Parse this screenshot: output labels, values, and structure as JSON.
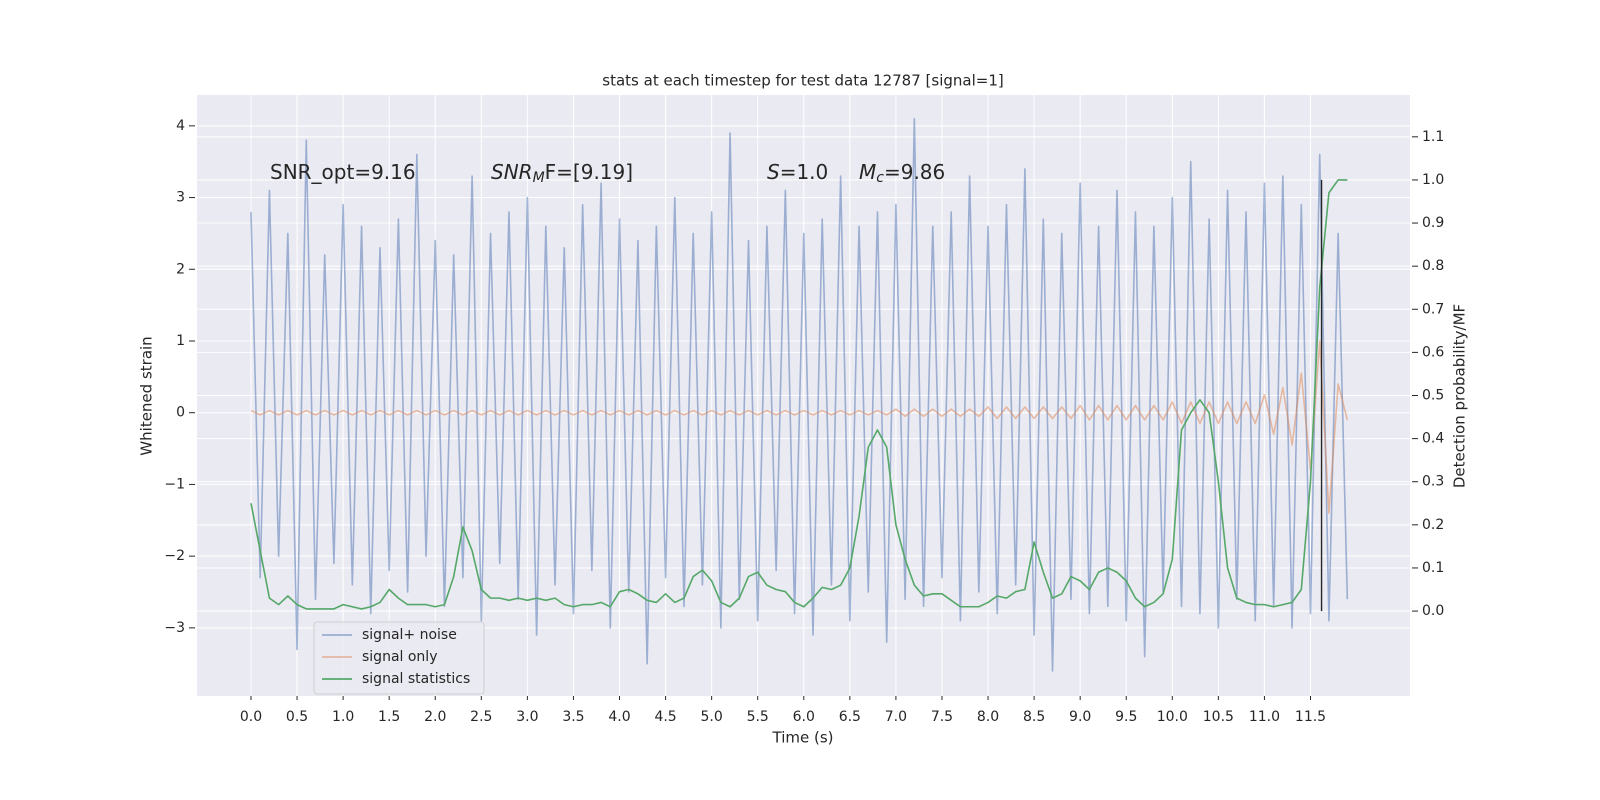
{
  "chart_data": {
    "type": "line",
    "title": "stats at each timestep for test data 12787 [signal=1]",
    "xlabel": "Time (s)",
    "ylabel": "Whitened strain",
    "y2label": "Detection probability/MF",
    "xlim": [
      -0.586,
      12.58
    ],
    "ylim": [
      -3.95,
      4.43
    ],
    "y2lim": [
      -0.197,
      1.197
    ],
    "xticks": [
      {
        "value": 0,
        "label": "0.0"
      },
      {
        "value": 0.5,
        "label": "0.5"
      },
      {
        "value": 1,
        "label": "1.0"
      },
      {
        "value": 1.5,
        "label": "1.5"
      },
      {
        "value": 2,
        "label": "2.0"
      },
      {
        "value": 2.5,
        "label": "2.5"
      },
      {
        "value": 3,
        "label": "3.0"
      },
      {
        "value": 3.5,
        "label": "3.5"
      },
      {
        "value": 4,
        "label": "4.0"
      },
      {
        "value": 4.5,
        "label": "4.5"
      },
      {
        "value": 5,
        "label": "5.0"
      },
      {
        "value": 5.5,
        "label": "5.5"
      },
      {
        "value": 6,
        "label": "6.0"
      },
      {
        "value": 6.5,
        "label": "6.5"
      },
      {
        "value": 7,
        "label": "7.0"
      },
      {
        "value": 7.5,
        "label": "7.5"
      },
      {
        "value": 8,
        "label": "8.0"
      },
      {
        "value": 8.5,
        "label": "8.5"
      },
      {
        "value": 9,
        "label": "9.0"
      },
      {
        "value": 9.5,
        "label": "9.5"
      },
      {
        "value": 10,
        "label": "10.0"
      },
      {
        "value": 10.5,
        "label": "10.5"
      },
      {
        "value": 11,
        "label": "11.0"
      },
      {
        "value": 11.5,
        "label": "11.5"
      }
    ],
    "yticks": [
      {
        "value": -3,
        "label": "−3"
      },
      {
        "value": -2,
        "label": "−2"
      },
      {
        "value": -1,
        "label": "−1"
      },
      0,
      1,
      2,
      3,
      4
    ],
    "y2ticks": [
      {
        "value": 0,
        "label": "0.0"
      },
      {
        "value": 0.1,
        "label": "0.1"
      },
      {
        "value": 0.2,
        "label": "0.2"
      },
      {
        "value": 0.3,
        "label": "0.3"
      },
      {
        "value": 0.4,
        "label": "0.4"
      },
      {
        "value": 0.5,
        "label": "0.5"
      },
      {
        "value": 0.6,
        "label": "0.6"
      },
      {
        "value": 0.7,
        "label": "0.7"
      },
      {
        "value": 0.8,
        "label": "0.8"
      },
      {
        "value": 0.9,
        "label": "0.9"
      },
      {
        "value": 1,
        "label": "1.0"
      },
      {
        "value": 1.1,
        "label": "1.1"
      }
    ],
    "grid": true,
    "legend": "lower left",
    "x": [
      0.0,
      0.1,
      0.2,
      0.3,
      0.4,
      0.5,
      0.6,
      0.7,
      0.8,
      0.9,
      1.0,
      1.1,
      1.2,
      1.3,
      1.4,
      1.5,
      1.6,
      1.7,
      1.8,
      1.9,
      2.0,
      2.1,
      2.2,
      2.3,
      2.4,
      2.5,
      2.6,
      2.7,
      2.8,
      2.9,
      3.0,
      3.1,
      3.2,
      3.3,
      3.4,
      3.5,
      3.6,
      3.7,
      3.8,
      3.9,
      4.0,
      4.1,
      4.2,
      4.3,
      4.4,
      4.5,
      4.6,
      4.7,
      4.8,
      4.9,
      5.0,
      5.1,
      5.2,
      5.3,
      5.4,
      5.5,
      5.6,
      5.7,
      5.8,
      5.9,
      6.0,
      6.1,
      6.2,
      6.3,
      6.4,
      6.5,
      6.6,
      6.7,
      6.8,
      6.9,
      7.0,
      7.1,
      7.2,
      7.3,
      7.4,
      7.5,
      7.6,
      7.7,
      7.8,
      7.9,
      8.0,
      8.1,
      8.2,
      8.3,
      8.4,
      8.5,
      8.6,
      8.7,
      8.8,
      8.9,
      9.0,
      9.1,
      9.2,
      9.3,
      9.4,
      9.5,
      9.6,
      9.7,
      9.8,
      9.9,
      10.0,
      10.1,
      10.2,
      10.3,
      10.4,
      10.5,
      10.6,
      10.7,
      10.8,
      10.9,
      11.0,
      11.1,
      11.2,
      11.3,
      11.4,
      11.5,
      11.6,
      11.7,
      11.8,
      11.9
    ],
    "series": [
      {
        "name": "signal+ noise",
        "color": "#4c72b0",
        "alpha": 0.5,
        "axis": "y",
        "values": [
          2.8,
          -2.3,
          3.1,
          -2.0,
          2.5,
          -3.3,
          3.8,
          -2.6,
          2.2,
          -2.1,
          2.9,
          -2.4,
          2.6,
          -2.8,
          2.3,
          -2.2,
          2.7,
          -2.5,
          3.6,
          -2.0,
          2.4,
          -2.7,
          2.2,
          -2.3,
          3.3,
          -2.9,
          2.5,
          -2.1,
          2.8,
          -2.6,
          3.0,
          -3.1,
          2.6,
          -2.4,
          2.3,
          -2.8,
          2.9,
          -2.2,
          3.2,
          -3.0,
          2.7,
          -2.5,
          2.4,
          -3.5,
          2.6,
          -2.3,
          3.0,
          -2.7,
          2.5,
          -2.4,
          2.8,
          -3.0,
          3.9,
          -2.6,
          2.4,
          -2.9,
          2.6,
          -2.2,
          3.1,
          -2.8,
          2.5,
          -3.1,
          2.7,
          -2.4,
          3.3,
          -2.9,
          2.6,
          -2.5,
          2.8,
          -3.2,
          2.9,
          -2.6,
          4.1,
          -2.7,
          2.6,
          -2.3,
          2.8,
          -2.9,
          3.3,
          -2.5,
          2.6,
          -2.8,
          2.9,
          -2.4,
          3.4,
          -3.1,
          2.7,
          -3.6,
          2.5,
          -2.6,
          3.2,
          -2.8,
          2.6,
          -2.7,
          3.1,
          -2.9,
          2.8,
          -3.4,
          2.6,
          -2.5,
          3.0,
          -2.7,
          3.5,
          -2.8,
          2.7,
          -3.0,
          3.1,
          -2.6,
          2.8,
          -2.9,
          3.2,
          -2.7,
          3.3,
          -3.0,
          2.9,
          -2.8,
          3.6,
          -2.9,
          2.5,
          -2.6
        ]
      },
      {
        "name": "signal only",
        "color": "#dd8452",
        "alpha": 0.5,
        "axis": "y",
        "values": [
          0.03,
          -0.03,
          0.03,
          -0.03,
          0.03,
          -0.03,
          0.03,
          -0.03,
          0.03,
          -0.03,
          0.03,
          -0.03,
          0.03,
          -0.03,
          0.03,
          -0.03,
          0.03,
          -0.03,
          0.03,
          -0.03,
          0.03,
          -0.03,
          0.03,
          -0.03,
          0.03,
          -0.03,
          0.03,
          -0.03,
          0.03,
          -0.03,
          0.03,
          -0.03,
          0.03,
          -0.03,
          0.03,
          -0.03,
          0.03,
          -0.03,
          0.03,
          -0.03,
          0.03,
          -0.03,
          0.03,
          -0.03,
          0.03,
          -0.03,
          0.03,
          -0.03,
          0.03,
          -0.03,
          0.03,
          -0.03,
          0.03,
          -0.03,
          0.03,
          -0.03,
          0.03,
          -0.03,
          0.03,
          -0.03,
          0.03,
          -0.03,
          0.03,
          -0.03,
          0.03,
          -0.03,
          0.03,
          -0.03,
          0.03,
          -0.03,
          0.05,
          -0.05,
          0.05,
          -0.05,
          0.05,
          -0.05,
          0.05,
          -0.05,
          0.05,
          -0.05,
          0.08,
          -0.08,
          0.08,
          -0.08,
          0.08,
          -0.08,
          0.08,
          -0.08,
          0.08,
          -0.08,
          0.1,
          -0.1,
          0.1,
          -0.1,
          0.1,
          -0.1,
          0.1,
          -0.1,
          0.1,
          -0.1,
          0.15,
          -0.15,
          0.15,
          -0.15,
          0.15,
          -0.15,
          0.15,
          -0.15,
          0.15,
          -0.15,
          0.25,
          -0.3,
          0.35,
          -0.45,
          0.55,
          -0.8,
          1.0,
          -1.4,
          0.4,
          -0.1
        ]
      },
      {
        "name": "signal statistics",
        "color": "#55a868",
        "alpha": 1,
        "axis": "y2",
        "values": [
          0.25,
          0.14,
          0.03,
          0.015,
          0.035,
          0.015,
          0.005,
          0.005,
          0.005,
          0.005,
          0.015,
          0.01,
          0.005,
          0.01,
          0.02,
          0.05,
          0.03,
          0.015,
          0.015,
          0.015,
          0.01,
          0.015,
          0.08,
          0.195,
          0.14,
          0.05,
          0.03,
          0.03,
          0.025,
          0.03,
          0.025,
          0.03,
          0.025,
          0.03,
          0.015,
          0.01,
          0.015,
          0.015,
          0.02,
          0.01,
          0.045,
          0.05,
          0.04,
          0.025,
          0.02,
          0.04,
          0.02,
          0.03,
          0.08,
          0.095,
          0.07,
          0.02,
          0.01,
          0.03,
          0.08,
          0.09,
          0.06,
          0.05,
          0.045,
          0.02,
          0.01,
          0.03,
          0.055,
          0.05,
          0.06,
          0.1,
          0.22,
          0.38,
          0.42,
          0.38,
          0.2,
          0.12,
          0.06,
          0.035,
          0.04,
          0.04,
          0.025,
          0.01,
          0.01,
          0.01,
          0.02,
          0.035,
          0.03,
          0.045,
          0.05,
          0.16,
          0.09,
          0.03,
          0.04,
          0.08,
          0.07,
          0.05,
          0.09,
          0.1,
          0.09,
          0.07,
          0.03,
          0.01,
          0.02,
          0.04,
          0.12,
          0.42,
          0.46,
          0.49,
          0.46,
          0.3,
          0.1,
          0.03,
          0.02,
          0.015,
          0.015,
          0.01,
          0.015,
          0.02,
          0.05,
          0.3,
          0.75,
          0.97,
          1.0,
          1.0
        ]
      }
    ],
    "vline": {
      "x": 11.62,
      "y2": [
        0,
        1.0
      ],
      "color": "#262626"
    },
    "annotations": [
      {
        "text": "SNR_opt=9.16"
      },
      {
        "base": "SNR",
        "sub": "M",
        "tail": "F=[9.19]"
      },
      {
        "base": "S",
        "tail": "=1.0"
      },
      {
        "base": "M",
        "sub": "c",
        "tail": "=9.86"
      }
    ]
  }
}
